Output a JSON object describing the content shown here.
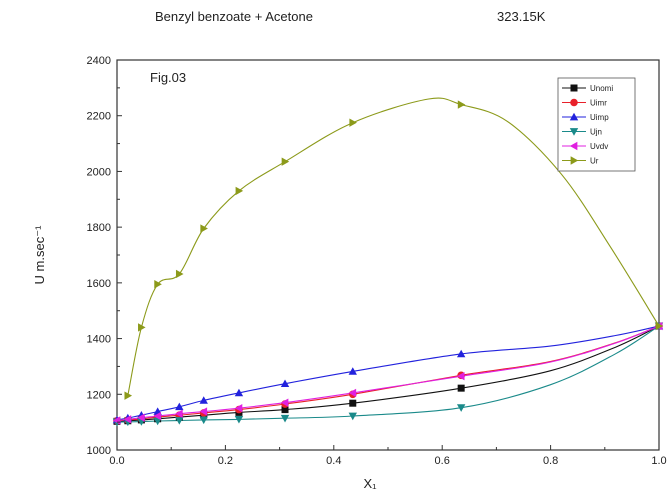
{
  "chart_data": {
    "type": "line",
    "title": "Benzyl benzoate + Acetone",
    "subtitle": "323.15K",
    "annotation": "Fig.03",
    "xlabel": "X₁",
    "ylabel": "U m.sec⁻¹",
    "xlim": [
      0.0,
      1.0
    ],
    "ylim": [
      1000,
      2400
    ],
    "xticks": [
      "0.0",
      "0.2",
      "0.4",
      "0.6",
      "0.8",
      "1.0"
    ],
    "yticks": [
      "1000",
      "1200",
      "1400",
      "1600",
      "1800",
      "2000",
      "2200",
      "2400"
    ],
    "grid": false,
    "legend_position": "top-right",
    "series": [
      {
        "name": "Unomi",
        "color": "#111111",
        "marker": "square",
        "x": [
          0.0,
          0.02,
          0.045,
          0.075,
          0.115,
          0.16,
          0.225,
          0.31,
          0.435,
          0.635,
          1.0
        ],
        "y": [
          1103,
          1105,
          1108,
          1112,
          1118,
          1125,
          1135,
          1145,
          1168,
          1222,
          1445
        ]
      },
      {
        "name": "Uimr",
        "color": "#e8202a",
        "marker": "circle",
        "x": [
          0.0,
          0.02,
          0.045,
          0.075,
          0.115,
          0.16,
          0.225,
          0.31,
          0.435,
          0.635,
          1.0
        ],
        "y": [
          1105,
          1108,
          1112,
          1118,
          1125,
          1133,
          1145,
          1165,
          1200,
          1268,
          1445
        ]
      },
      {
        "name": "Uimp",
        "color": "#2222dd",
        "marker": "triangle-up",
        "x": [
          0.0,
          0.02,
          0.045,
          0.075,
          0.115,
          0.16,
          0.225,
          0.31,
          0.435,
          0.635,
          1.0
        ],
        "y": [
          1108,
          1115,
          1125,
          1138,
          1155,
          1178,
          1205,
          1238,
          1282,
          1345,
          1445
        ]
      },
      {
        "name": "Ujn",
        "color": "#1a8a8a",
        "marker": "triangle-down",
        "x": [
          0.0,
          0.02,
          0.045,
          0.075,
          0.115,
          0.16,
          0.225,
          0.31,
          0.435,
          0.635,
          1.0
        ],
        "y": [
          1100,
          1101,
          1102,
          1104,
          1106,
          1108,
          1110,
          1114,
          1122,
          1152,
          1445
        ]
      },
      {
        "name": "Uvdv",
        "color": "#e020e0",
        "marker": "triangle-left",
        "x": [
          0.0,
          0.02,
          0.045,
          0.075,
          0.115,
          0.16,
          0.225,
          0.31,
          0.435,
          0.635,
          1.0
        ],
        "y": [
          1106,
          1110,
          1116,
          1122,
          1130,
          1138,
          1150,
          1170,
          1205,
          1265,
          1445
        ]
      },
      {
        "name": "Ur",
        "color": "#8c9a1a",
        "marker": "triangle-right",
        "x": [
          0.02,
          0.045,
          0.075,
          0.115,
          0.16,
          0.225,
          0.31,
          0.435,
          0.635,
          1.0
        ],
        "y": [
          1195,
          1440,
          1595,
          1632,
          1795,
          1930,
          2035,
          2175,
          2240,
          1445
        ],
        "curve_peak": [
          0.575,
          2260
        ]
      }
    ]
  }
}
